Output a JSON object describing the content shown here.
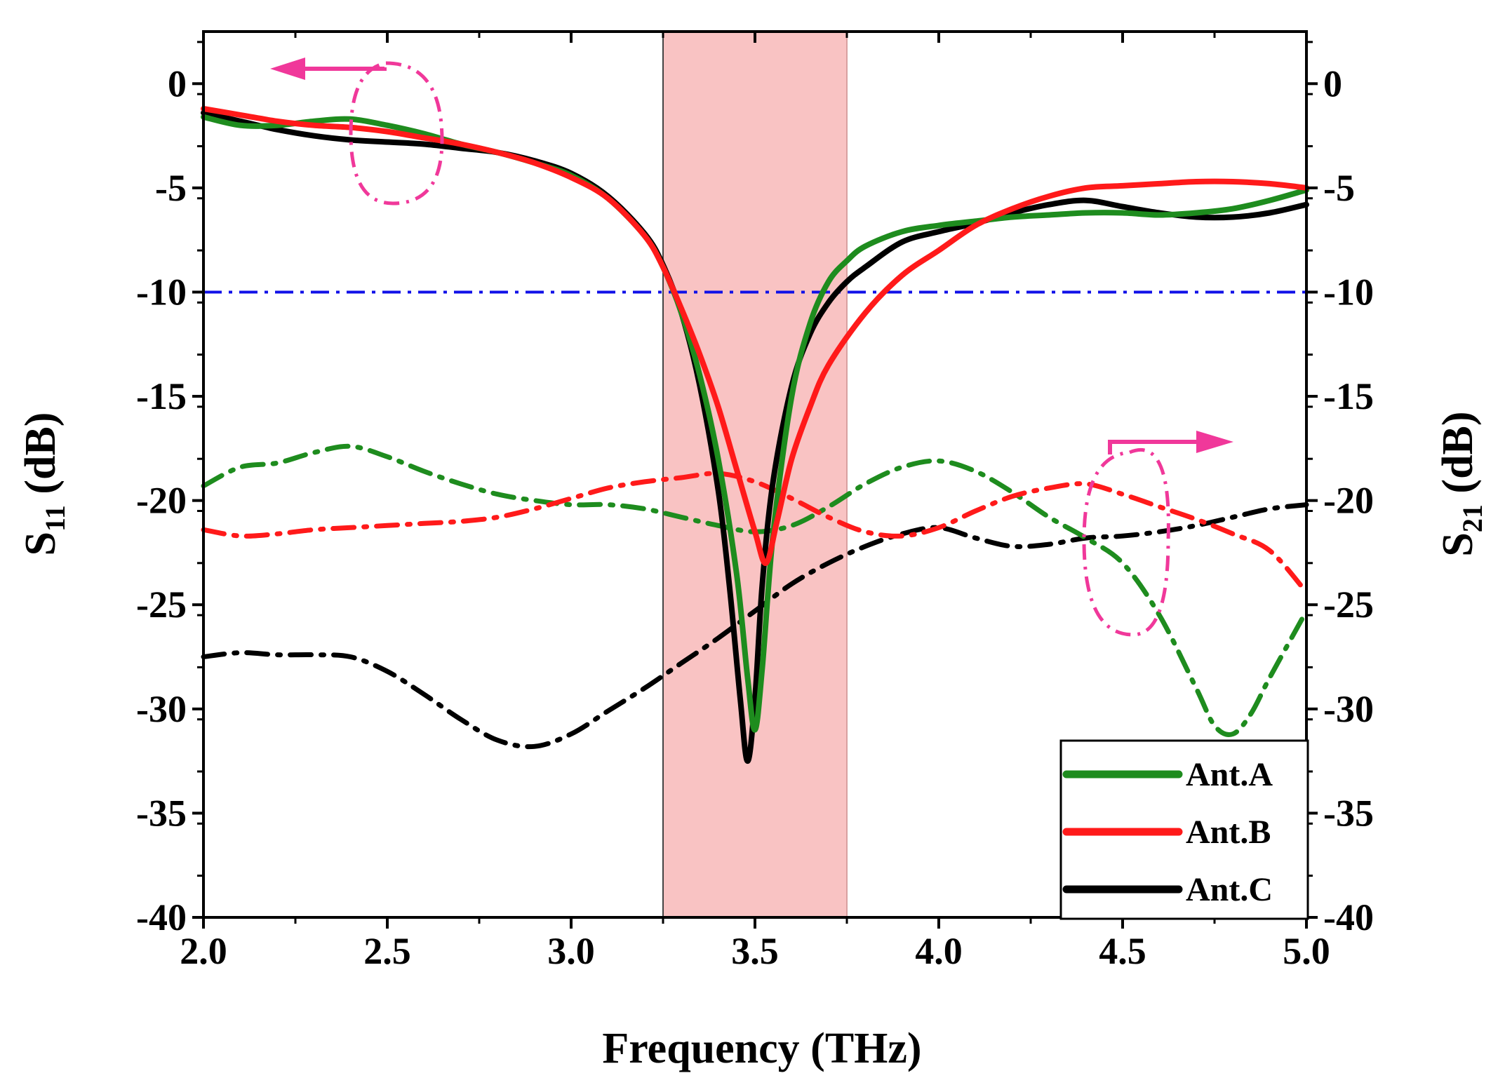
{
  "chart_data": {
    "type": "line",
    "xlabel": "Frequency (THz)",
    "ylabel_left": {
      "base": "S",
      "sub": "11",
      "unit": " (dB)"
    },
    "ylabel_right": {
      "base": "S",
      "sub": "21",
      "unit": " (dB)"
    },
    "xlim": [
      2.0,
      5.0
    ],
    "ylim": [
      -40,
      2.5
    ],
    "xticks": [
      2.0,
      2.5,
      3.0,
      3.5,
      4.0,
      4.5,
      5.0
    ],
    "xtick_labels": [
      "2.0",
      "2.5",
      "3.0",
      "3.5",
      "4.0",
      "4.5",
      "5.0"
    ],
    "yticks": [
      0,
      -5,
      -10,
      -15,
      -20,
      -25,
      -30,
      -35,
      -40
    ],
    "ytick_labels": [
      "0",
      "-5",
      "-10",
      "-15",
      "-20",
      "-25",
      "-30",
      "-35",
      "-40"
    ],
    "shaded_band": {
      "x_start": 3.25,
      "x_end": 3.75,
      "color": "#f9c3c3"
    },
    "threshold": {
      "y": -10,
      "color": "#1010e8"
    },
    "annotation_color": "#f0389a",
    "legend": [
      {
        "label": "Ant.A",
        "color": "#1e8c1e"
      },
      {
        "label": "Ant.B",
        "color": "#ff1a1a"
      },
      {
        "label": "Ant.C",
        "color": "#000000"
      }
    ],
    "series": [
      {
        "name": "Ant.A S11",
        "color": "#1e8c1e",
        "style": "solid",
        "x": [
          2.0,
          2.1,
          2.2,
          2.3,
          2.4,
          2.5,
          2.6,
          2.7,
          2.8,
          2.9,
          3.0,
          3.1,
          3.2,
          3.25,
          3.3,
          3.35,
          3.4,
          3.45,
          3.48,
          3.5,
          3.52,
          3.55,
          3.6,
          3.65,
          3.7,
          3.75,
          3.8,
          3.9,
          4.0,
          4.1,
          4.2,
          4.3,
          4.4,
          4.5,
          4.6,
          4.7,
          4.8,
          4.9,
          5.0
        ],
        "y": [
          -1.6,
          -2.0,
          -2.0,
          -1.8,
          -1.7,
          -2.0,
          -2.4,
          -2.9,
          -3.3,
          -3.8,
          -4.4,
          -5.5,
          -7.3,
          -8.8,
          -11.0,
          -14.0,
          -18.0,
          -23.5,
          -28.5,
          -31.0,
          -28.0,
          -21.5,
          -15.0,
          -11.5,
          -9.5,
          -8.5,
          -7.8,
          -7.1,
          -6.8,
          -6.6,
          -6.4,
          -6.3,
          -6.2,
          -6.2,
          -6.3,
          -6.2,
          -6.0,
          -5.6,
          -5.1
        ]
      },
      {
        "name": "Ant.B S11",
        "color": "#ff1a1a",
        "style": "solid",
        "x": [
          2.0,
          2.1,
          2.2,
          2.3,
          2.4,
          2.5,
          2.6,
          2.7,
          2.8,
          2.9,
          3.0,
          3.1,
          3.2,
          3.25,
          3.3,
          3.35,
          3.4,
          3.45,
          3.5,
          3.53,
          3.56,
          3.6,
          3.65,
          3.7,
          3.8,
          3.9,
          4.0,
          4.1,
          4.2,
          4.3,
          4.4,
          4.5,
          4.6,
          4.7,
          4.8,
          4.9,
          5.0
        ],
        "y": [
          -1.2,
          -1.5,
          -1.8,
          -2.0,
          -2.1,
          -2.3,
          -2.6,
          -2.9,
          -3.3,
          -3.8,
          -4.5,
          -5.5,
          -7.3,
          -8.8,
          -10.8,
          -13.0,
          -15.5,
          -18.5,
          -21.5,
          -23.0,
          -21.0,
          -18.0,
          -15.5,
          -13.5,
          -11.0,
          -9.2,
          -8.0,
          -6.8,
          -6.0,
          -5.4,
          -5.0,
          -4.9,
          -4.8,
          -4.7,
          -4.7,
          -4.8,
          -5.0
        ]
      },
      {
        "name": "Ant.C S11",
        "color": "#000000",
        "style": "solid",
        "x": [
          2.0,
          2.1,
          2.2,
          2.3,
          2.4,
          2.5,
          2.6,
          2.7,
          2.8,
          2.9,
          3.0,
          3.1,
          3.2,
          3.25,
          3.3,
          3.35,
          3.4,
          3.43,
          3.46,
          3.48,
          3.5,
          3.52,
          3.55,
          3.6,
          3.65,
          3.7,
          3.75,
          3.8,
          3.9,
          4.0,
          4.1,
          4.2,
          4.3,
          4.4,
          4.5,
          4.6,
          4.7,
          4.8,
          4.9,
          5.0
        ],
        "y": [
          -1.4,
          -1.8,
          -2.2,
          -2.5,
          -2.7,
          -2.8,
          -2.9,
          -3.1,
          -3.3,
          -3.7,
          -4.3,
          -5.4,
          -7.2,
          -8.7,
          -11.0,
          -14.5,
          -19.5,
          -24.0,
          -29.5,
          -32.5,
          -29.5,
          -24.0,
          -19.0,
          -14.5,
          -12.0,
          -10.5,
          -9.5,
          -8.8,
          -7.6,
          -7.1,
          -6.7,
          -6.2,
          -5.8,
          -5.6,
          -5.9,
          -6.2,
          -6.4,
          -6.4,
          -6.2,
          -5.8
        ]
      },
      {
        "name": "Ant.A S21",
        "color": "#1e8c1e",
        "style": "dashdot",
        "x": [
          2.0,
          2.1,
          2.2,
          2.3,
          2.4,
          2.5,
          2.6,
          2.7,
          2.8,
          2.9,
          3.0,
          3.1,
          3.2,
          3.3,
          3.4,
          3.5,
          3.6,
          3.7,
          3.8,
          3.9,
          4.0,
          4.1,
          4.2,
          4.3,
          4.4,
          4.5,
          4.6,
          4.7,
          4.75,
          4.8,
          4.85,
          4.9,
          5.0
        ],
        "y": [
          -19.3,
          -18.4,
          -18.2,
          -17.7,
          -17.4,
          -17.9,
          -18.6,
          -19.2,
          -19.7,
          -20.0,
          -20.2,
          -20.2,
          -20.4,
          -20.8,
          -21.2,
          -21.5,
          -21.2,
          -20.3,
          -19.2,
          -18.4,
          -18.1,
          -18.6,
          -19.6,
          -20.8,
          -21.8,
          -23.0,
          -25.5,
          -29.0,
          -30.8,
          -31.2,
          -30.2,
          -28.5,
          -25.3
        ]
      },
      {
        "name": "Ant.B S21",
        "color": "#ff1a1a",
        "style": "dashdot",
        "x": [
          2.0,
          2.1,
          2.2,
          2.3,
          2.4,
          2.5,
          2.6,
          2.7,
          2.8,
          2.9,
          3.0,
          3.1,
          3.2,
          3.3,
          3.4,
          3.5,
          3.6,
          3.7,
          3.8,
          3.9,
          4.0,
          4.1,
          4.2,
          4.3,
          4.4,
          4.5,
          4.6,
          4.7,
          4.8,
          4.9,
          5.0
        ],
        "y": [
          -21.4,
          -21.7,
          -21.6,
          -21.4,
          -21.3,
          -21.2,
          -21.1,
          -21.0,
          -20.8,
          -20.4,
          -19.9,
          -19.4,
          -19.1,
          -18.9,
          -18.7,
          -19.1,
          -19.9,
          -20.8,
          -21.5,
          -21.7,
          -21.3,
          -20.5,
          -19.8,
          -19.4,
          -19.2,
          -19.7,
          -20.3,
          -20.9,
          -21.6,
          -22.4,
          -24.4
        ]
      },
      {
        "name": "Ant.C S21",
        "color": "#000000",
        "style": "dashdot",
        "x": [
          2.0,
          2.1,
          2.2,
          2.3,
          2.4,
          2.5,
          2.6,
          2.7,
          2.8,
          2.9,
          3.0,
          3.1,
          3.2,
          3.3,
          3.4,
          3.5,
          3.6,
          3.7,
          3.8,
          3.9,
          4.0,
          4.1,
          4.2,
          4.3,
          4.4,
          4.5,
          4.6,
          4.7,
          4.8,
          4.9,
          5.0
        ],
        "y": [
          -27.5,
          -27.3,
          -27.4,
          -27.4,
          -27.5,
          -28.2,
          -29.3,
          -30.5,
          -31.5,
          -31.8,
          -31.2,
          -30.1,
          -29.0,
          -27.8,
          -26.6,
          -25.3,
          -24.0,
          -23.0,
          -22.2,
          -21.6,
          -21.3,
          -21.8,
          -22.2,
          -22.1,
          -21.8,
          -21.7,
          -21.5,
          -21.2,
          -20.8,
          -20.4,
          -20.2
        ]
      }
    ]
  }
}
